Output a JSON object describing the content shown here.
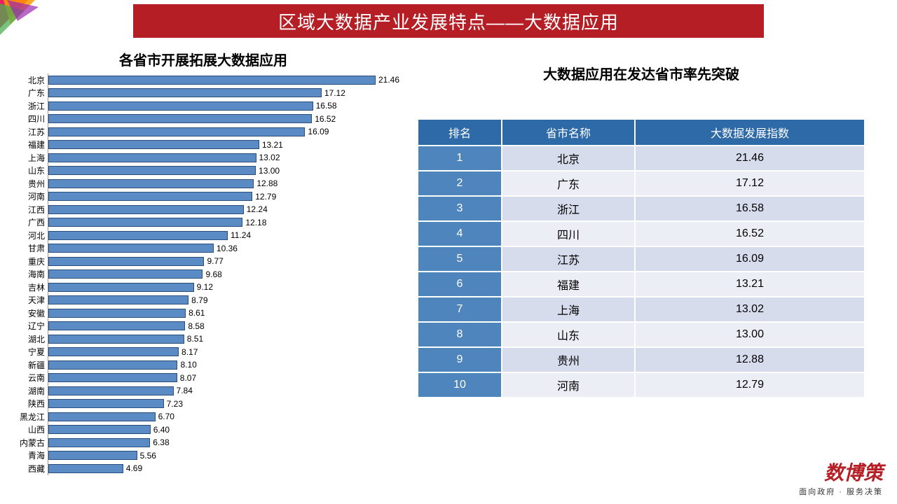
{
  "colors": {
    "title_bg": "#b41e24",
    "title_text": "#ffffff",
    "bar_fill": "#5b8bc5",
    "bar_border": "#2a4d7a",
    "table_header_bg": "#2e6aa8",
    "table_rank_bg": "#4f85bd",
    "table_row_odd": "#d7dcec",
    "table_row_even": "#eceef6",
    "text": "#000000",
    "logo": "#b41e24"
  },
  "header": {
    "title": "区域大数据产业发展特点——大数据应用"
  },
  "chart": {
    "title": "各省市开展拓展大数据应用",
    "x_max": 22,
    "bar_color": "#5b8bc5",
    "items": [
      {
        "label": "北京",
        "value": 21.46
      },
      {
        "label": "广东",
        "value": 17.12
      },
      {
        "label": "浙江",
        "value": 16.58
      },
      {
        "label": "四川",
        "value": 16.52
      },
      {
        "label": "江苏",
        "value": 16.09
      },
      {
        "label": "福建",
        "value": 13.21
      },
      {
        "label": "上海",
        "value": 13.02
      },
      {
        "label": "山东",
        "value": 13.0
      },
      {
        "label": "贵州",
        "value": 12.88
      },
      {
        "label": "河南",
        "value": 12.79
      },
      {
        "label": "江西",
        "value": 12.24
      },
      {
        "label": "广西",
        "value": 12.18
      },
      {
        "label": "河北",
        "value": 11.24
      },
      {
        "label": "甘肃",
        "value": 10.36
      },
      {
        "label": "重庆",
        "value": 9.77
      },
      {
        "label": "海南",
        "value": 9.68
      },
      {
        "label": "吉林",
        "value": 9.12
      },
      {
        "label": "天津",
        "value": 8.79
      },
      {
        "label": "安徽",
        "value": 8.61
      },
      {
        "label": "辽宁",
        "value": 8.58
      },
      {
        "label": "湖北",
        "value": 8.51
      },
      {
        "label": "宁夏",
        "value": 8.17
      },
      {
        "label": "新疆",
        "value": 8.1
      },
      {
        "label": "云南",
        "value": 8.07
      },
      {
        "label": "湖南",
        "value": 7.84
      },
      {
        "label": "陕西",
        "value": 7.23
      },
      {
        "label": "黑龙江",
        "value": 6.7
      },
      {
        "label": "山西",
        "value": 6.4
      },
      {
        "label": "内蒙古",
        "value": 6.38
      },
      {
        "label": "青海",
        "value": 5.56
      },
      {
        "label": "西藏",
        "value": 4.69
      }
    ]
  },
  "table": {
    "title": "大数据应用在发达省市率先突破",
    "columns": [
      "排名",
      "省市名称",
      "大数据发展指数"
    ],
    "rows": [
      {
        "rank": "1",
        "name": "北京",
        "index": "21.46"
      },
      {
        "rank": "2",
        "name": "广东",
        "index": "17.12"
      },
      {
        "rank": "3",
        "name": "浙江",
        "index": "16.58"
      },
      {
        "rank": "4",
        "name": "四川",
        "index": "16.52"
      },
      {
        "rank": "5",
        "name": "江苏",
        "index": "16.09"
      },
      {
        "rank": "6",
        "name": "福建",
        "index": "13.21"
      },
      {
        "rank": "7",
        "name": "上海",
        "index": "13.02"
      },
      {
        "rank": "8",
        "name": "山东",
        "index": "13.00"
      },
      {
        "rank": "9",
        "name": "贵州",
        "index": "12.88"
      },
      {
        "rank": "10",
        "name": "河南",
        "index": "12.79"
      }
    ]
  },
  "footer": {
    "logo_text": "数博策",
    "tagline": "面向政府 · 服务决策"
  }
}
